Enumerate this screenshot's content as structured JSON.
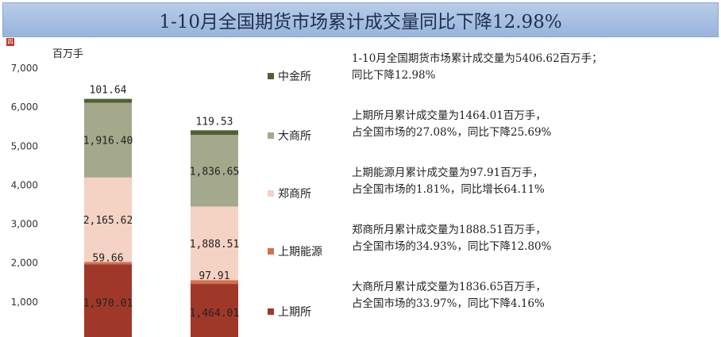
{
  "header": {
    "title": "1-10月全国期货市场累计成交量同比下降12.98%"
  },
  "badge": "四",
  "chart_data": {
    "type": "stacked-bar",
    "ylabel": "百万手",
    "ylim": [
      0,
      7000
    ],
    "yticks": [
      1000,
      2000,
      3000,
      4000,
      5000,
      6000,
      7000
    ],
    "ytick_labels": [
      "1,000",
      "2,000",
      "3,000",
      "4,000",
      "5,000",
      "6,000",
      "7,000"
    ],
    "categories": [
      "",
      ""
    ],
    "series": [
      {
        "name": "上期所",
        "color": "#a0382a",
        "values": [
          1970.01,
          1464.01
        ],
        "labels": [
          "1,970.01",
          "1,464.01"
        ]
      },
      {
        "name": "上期能源",
        "color": "#d4704e",
        "values": [
          59.66,
          97.91
        ],
        "labels": [
          "59.66",
          "97.91"
        ]
      },
      {
        "name": "郑商所",
        "color": "#f4d2c4",
        "values": [
          2165.62,
          1888.51
        ],
        "labels": [
          "2,165.62",
          "1,888.51"
        ]
      },
      {
        "name": "大商所",
        "color": "#a3a98a",
        "values": [
          1916.4,
          1836.65
        ],
        "labels": [
          "1,916.40",
          "1,836.65"
        ]
      },
      {
        "name": "中金所",
        "color": "#4f6135",
        "values": [
          101.64,
          119.53
        ],
        "labels": [
          "101.64",
          "119.53"
        ]
      }
    ],
    "legend_position": "right",
    "grid": false
  },
  "notes": [
    "1-10月全国期货市场累计成交量为5406.62百万手；\n同比下降12.98%",
    "上期所月累计成交量为1464.01百万手，\n占全国市场的27.08%，同比下降25.69%",
    "上期能源月累计成交量为97.91百万手，\n占全国市场的1.81%，同比增长64.11%",
    "郑商所月累计成交量为1888.51百万手，\n占全国市场的34.93%，同比下降12.80%",
    "大商所月累计成交量为1836.65百万手，\n占全国市场的33.97%，同比下降4.16%"
  ]
}
